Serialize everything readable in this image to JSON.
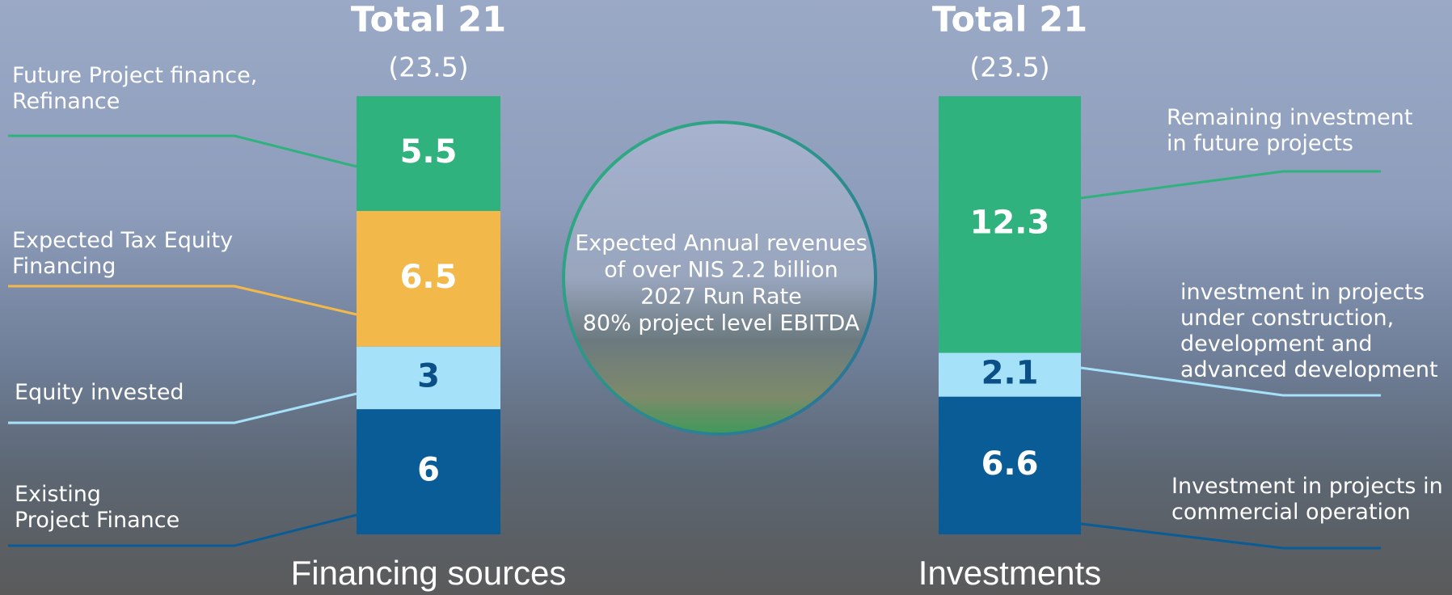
{
  "chart_data": [
    {
      "type": "stacked-bar",
      "title": "Total 21",
      "subtitle": "(23.5)",
      "xlabel": "Financing sources",
      "ylim": [
        0,
        21
      ],
      "legend": "left",
      "series": [
        {
          "name": "Existing\nProject Finance",
          "color": "#0a5c96",
          "label_color": "#ffffff",
          "values": [
            6
          ]
        },
        {
          "name": "Equity invested",
          "color": "#a6e1fa",
          "label_color": "#0a4f86",
          "values": [
            3
          ]
        },
        {
          "name": "Expected Tax Equity\nFinancing",
          "color": "#f2b94a",
          "label_color": "#ffffff",
          "values": [
            6.5
          ]
        },
        {
          "name": "Future Project finance,\nRefinance",
          "color": "#2fb27d",
          "label_color": "#ffffff",
          "values": [
            5.5
          ]
        }
      ]
    },
    {
      "type": "stacked-bar",
      "title": "Total 21",
      "subtitle": "(23.5)",
      "xlabel": "Investments",
      "ylim": [
        0,
        21
      ],
      "legend": "right",
      "series": [
        {
          "name": "Investment in projects in\ncommercial operation",
          "color": "#0a5c96",
          "label_color": "#ffffff",
          "values": [
            6.6
          ]
        },
        {
          "name": "investment in projects\nunder construction,\ndevelopment and\nadvanced development",
          "color": "#a6e1fa",
          "label_color": "#0a4f86",
          "values": [
            2.1
          ]
        },
        {
          "name": "Remaining investment\nin future projects",
          "color": "#2fb27d",
          "label_color": "#ffffff",
          "values": [
            12.3
          ]
        }
      ]
    }
  ],
  "center_text": [
    "Expected Annual revenues",
    "of over NIS 2.2 billion",
    "2027 Run Rate",
    "80% project level EBITDA"
  ]
}
